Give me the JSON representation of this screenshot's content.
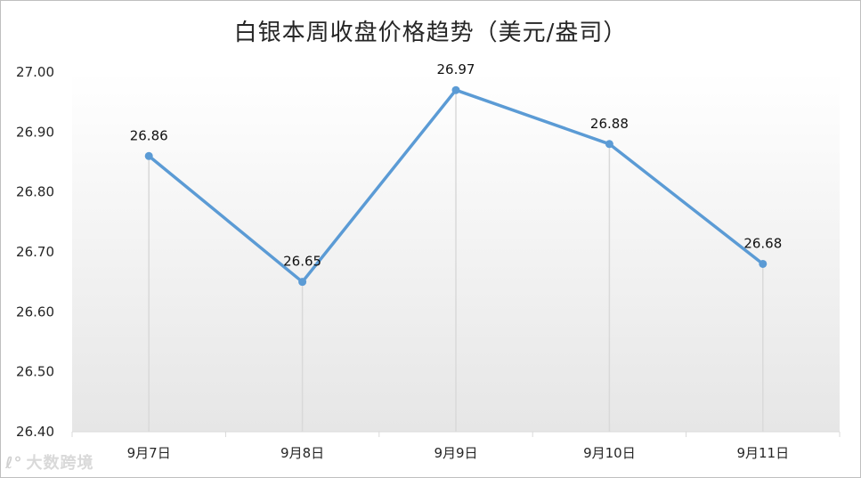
{
  "chart_data": {
    "type": "line",
    "title": "白银本周收盘价格趋势（美元/盎司）",
    "categories": [
      "9月7日",
      "9月8日",
      "9月9日",
      "9月10日",
      "9月11日"
    ],
    "values": [
      26.86,
      26.65,
      26.97,
      26.88,
      26.68
    ],
    "data_labels": [
      "26.86",
      "26.65",
      "26.97",
      "26.88",
      "26.68"
    ],
    "y_ticks": [
      "27.00",
      "26.90",
      "26.80",
      "26.70",
      "26.60",
      "26.50",
      "26.40"
    ],
    "ylim": [
      26.4,
      27.0
    ],
    "xlabel": "",
    "ylabel": "",
    "grid": false,
    "drop_lines": true,
    "line_color": "#5b9bd5",
    "drop_line_color": "#d9d9d9",
    "legend": "none"
  },
  "watermark": {
    "logo": "ℓ°",
    "text": "大数跨境"
  }
}
